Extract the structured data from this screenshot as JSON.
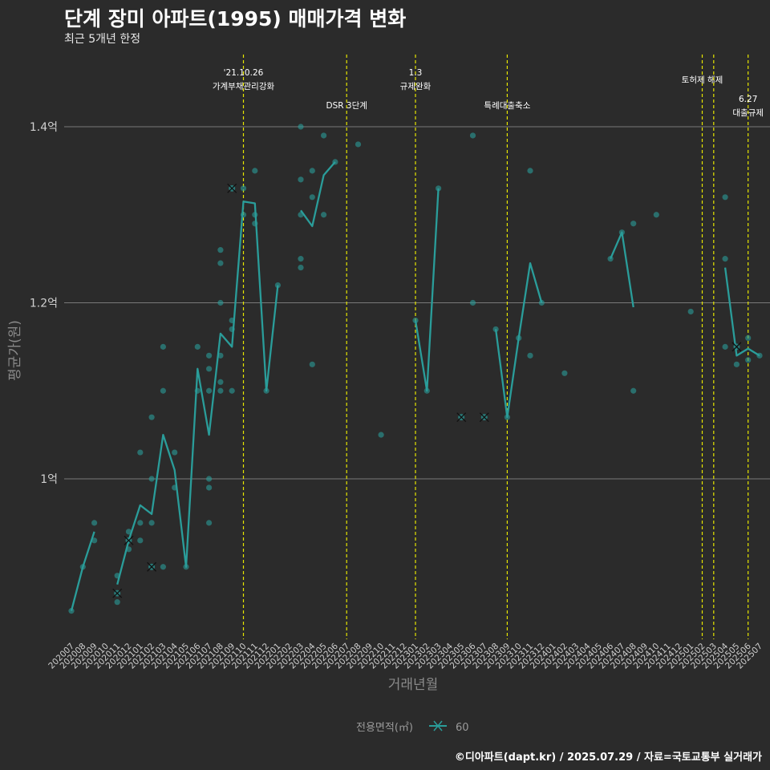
{
  "page": {
    "title": "단계 장미 아파트(1995) 매매가격 변화",
    "subtitle": "최근 5개년 한정",
    "caption": "©디아파트(dapt.kr) / 2025.07.29 / 자료=국토교통부 실거래가"
  },
  "chart_data": {
    "type": "line",
    "title": "단계 장미 아파트(1995) 매매가격 변화",
    "subtitle": "최근 5개년 한정",
    "xlabel": "거래년월",
    "ylabel": "평균가(원)",
    "ylim": [
      0.83,
      1.48
    ],
    "yticks": [
      {
        "value": 1.0,
        "label": "1억"
      },
      {
        "value": 1.2,
        "label": "1.2억"
      },
      {
        "value": 1.4,
        "label": "1.4억"
      }
    ],
    "grid": true,
    "legend": {
      "position": "bottom",
      "title": "전용면적(㎡)",
      "entries": [
        "60"
      ]
    },
    "colors": {
      "series": "#2a9d9a",
      "annotation_line": "#e6e600",
      "grid": "#7a7a7a"
    },
    "x": [
      "202007",
      "202008",
      "202009",
      "202010",
      "202011",
      "202012",
      "202101",
      "202102",
      "202103",
      "202104",
      "202105",
      "202106",
      "202107",
      "202108",
      "202109",
      "202110",
      "202111",
      "202112",
      "202201",
      "202202",
      "202203",
      "202204",
      "202205",
      "202206",
      "202207",
      "202208",
      "202209",
      "202210",
      "202211",
      "202212",
      "202301",
      "202302",
      "202303",
      "202304",
      "202305",
      "202306",
      "202307",
      "202308",
      "202309",
      "202310",
      "202311",
      "202312",
      "202401",
      "202402",
      "202403",
      "202404",
      "202405",
      "202406",
      "202407",
      "202408",
      "202409",
      "202410",
      "202411",
      "202412",
      "202501",
      "202502",
      "202503",
      "202504",
      "202505",
      "202506",
      "202507"
    ],
    "series": [
      {
        "name": "60",
        "line_segments": [
          [
            [
              "202007",
              0.85
            ],
            [
              "202008",
              0.9
            ],
            [
              "202009",
              0.94
            ]
          ],
          [
            [
              "202011",
              0.88
            ],
            [
              "202012",
              0.93
            ],
            [
              "202101",
              0.97
            ],
            [
              "202102",
              0.96
            ],
            [
              "202103",
              1.05
            ],
            [
              "202104",
              1.01
            ],
            [
              "202105",
              0.9
            ],
            [
              "202106",
              1.125
            ],
            [
              "202107",
              1.05
            ],
            [
              "202108",
              1.165
            ],
            [
              "202109",
              1.15
            ],
            [
              "202110",
              1.315
            ],
            [
              "202111",
              1.313
            ],
            [
              "202112",
              1.1
            ],
            [
              "202201",
              1.22
            ]
          ],
          [
            [
              "202203",
              1.305
            ],
            [
              "202204",
              1.287
            ],
            [
              "202205",
              1.345
            ],
            [
              "202206",
              1.36
            ]
          ],
          [
            [
              "202301",
              1.18
            ],
            [
              "202302",
              1.1
            ],
            [
              "202303",
              1.33
            ]
          ],
          [
            [
              "202308",
              1.17
            ],
            [
              "202309",
              1.07
            ],
            [
              "202310",
              1.16
            ],
            [
              "202311",
              1.245
            ],
            [
              "202312",
              1.2
            ]
          ],
          [
            [
              "202406",
              1.25
            ],
            [
              "202407",
              1.28
            ],
            [
              "202408",
              1.195
            ]
          ],
          [
            [
              "202504",
              1.24
            ],
            [
              "202505",
              1.14
            ],
            [
              "202506",
              1.148
            ],
            [
              "202507",
              1.14
            ]
          ]
        ],
        "points": [
          [
            "202007",
            0.85
          ],
          [
            "202008",
            0.9
          ],
          [
            "202009",
            0.93
          ],
          [
            "202009",
            0.95
          ],
          [
            "202011",
            0.89
          ],
          [
            "202011",
            0.86
          ],
          [
            "202012",
            0.94
          ],
          [
            "202012",
            0.92
          ],
          [
            "202101",
            1.03
          ],
          [
            "202101",
            0.95
          ],
          [
            "202101",
            0.93
          ],
          [
            "202102",
            1.07
          ],
          [
            "202102",
            1.0
          ],
          [
            "202102",
            0.95
          ],
          [
            "202103",
            1.15
          ],
          [
            "202103",
            1.1
          ],
          [
            "202103",
            0.9
          ],
          [
            "202104",
            1.03
          ],
          [
            "202104",
            0.99
          ],
          [
            "202105",
            0.9
          ],
          [
            "202106",
            1.15
          ],
          [
            "202106",
            1.1
          ],
          [
            "202107",
            1.14
          ],
          [
            "202107",
            1.125
          ],
          [
            "202107",
            1.1
          ],
          [
            "202107",
            1.0
          ],
          [
            "202107",
            0.99
          ],
          [
            "202107",
            0.95
          ],
          [
            "202108",
            1.26
          ],
          [
            "202108",
            1.245
          ],
          [
            "202108",
            1.2
          ],
          [
            "202108",
            1.14
          ],
          [
            "202108",
            1.11
          ],
          [
            "202108",
            1.1
          ],
          [
            "202109",
            1.18
          ],
          [
            "202109",
            1.17
          ],
          [
            "202109",
            1.1
          ],
          [
            "202110",
            1.33
          ],
          [
            "202110",
            1.3
          ],
          [
            "202111",
            1.35
          ],
          [
            "202111",
            1.3
          ],
          [
            "202111",
            1.29
          ],
          [
            "202112",
            1.1
          ],
          [
            "202201",
            1.22
          ],
          [
            "202203",
            1.4
          ],
          [
            "202203",
            1.34
          ],
          [
            "202203",
            1.3
          ],
          [
            "202203",
            1.25
          ],
          [
            "202203",
            1.24
          ],
          [
            "202204",
            1.35
          ],
          [
            "202204",
            1.32
          ],
          [
            "202204",
            1.13
          ],
          [
            "202205",
            1.39
          ],
          [
            "202205",
            1.3
          ],
          [
            "202206",
            1.36
          ],
          [
            "202208",
            1.38
          ],
          [
            "202210",
            1.05
          ],
          [
            "202301",
            1.18
          ],
          [
            "202302",
            1.1
          ],
          [
            "202303",
            1.33
          ],
          [
            "202306",
            1.39
          ],
          [
            "202306",
            1.2
          ],
          [
            "202308",
            1.17
          ],
          [
            "202309",
            1.07
          ],
          [
            "202310",
            1.16
          ],
          [
            "202311",
            1.35
          ],
          [
            "202311",
            1.14
          ],
          [
            "202312",
            1.2
          ],
          [
            "202402",
            1.12
          ],
          [
            "202406",
            1.25
          ],
          [
            "202407",
            1.28
          ],
          [
            "202408",
            1.29
          ],
          [
            "202408",
            1.1
          ],
          [
            "202410",
            1.3
          ],
          [
            "202501",
            1.19
          ],
          [
            "202504",
            1.32
          ],
          [
            "202504",
            1.25
          ],
          [
            "202504",
            1.15
          ],
          [
            "202505",
            1.13
          ],
          [
            "202506",
            1.16
          ],
          [
            "202506",
            1.135
          ],
          [
            "202507",
            1.14
          ]
        ],
        "x_markers": [
          [
            "202011",
            0.87
          ],
          [
            "202012",
            0.93
          ],
          [
            "202102",
            0.9
          ],
          [
            "202109",
            1.33
          ],
          [
            "202305",
            1.07
          ],
          [
            "202307",
            1.07
          ],
          [
            "202505",
            1.15
          ]
        ]
      }
    ],
    "annotations": [
      {
        "x": "202110",
        "lines": [
          "'21.10.26",
          "가계부채관리강화"
        ],
        "level": 0
      },
      {
        "x": "202207",
        "lines": [
          "DSR 3단계"
        ],
        "level": 2
      },
      {
        "x": "202301",
        "lines": [
          "1.3",
          "규제완화"
        ],
        "level": 0
      },
      {
        "x": "202309",
        "lines": [
          "특례대출축소"
        ],
        "level": 2
      },
      {
        "x": "202502",
        "lines": [
          "토허제 해제"
        ],
        "level": 1
      },
      {
        "x": "202503",
        "lines": [],
        "level": 1
      },
      {
        "x": "202506",
        "lines": [
          "6.27",
          "대출규제"
        ],
        "level": 3
      }
    ]
  }
}
